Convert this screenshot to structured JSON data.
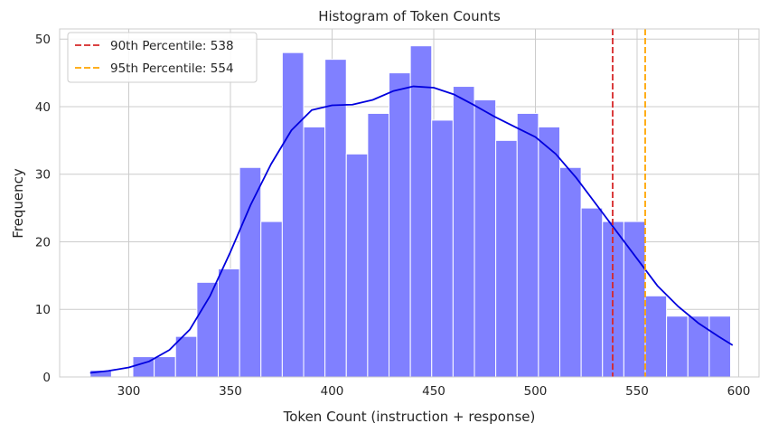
{
  "chart_data": {
    "type": "bar",
    "title": "Histogram of Token Counts",
    "xlabel": "Token Count (instruction + response)",
    "ylabel": "Frequency",
    "xlim": [
      266,
      610
    ],
    "ylim": [
      0,
      51.5
    ],
    "x_ticks": [
      300,
      350,
      400,
      450,
      500,
      550,
      600
    ],
    "y_ticks": [
      0,
      10,
      20,
      30,
      40,
      50
    ],
    "grid": true,
    "legend_position": "top-left",
    "bar_color": "#8080ff",
    "bin_start": 281,
    "bin_width": 10.5,
    "bin_counts": [
      1,
      0,
      3,
      3,
      6,
      14,
      16,
      31,
      23,
      48,
      37,
      47,
      33,
      39,
      45,
      49,
      38,
      43,
      41,
      35,
      39,
      37,
      31,
      25,
      23,
      23,
      12,
      9,
      9,
      9
    ],
    "kde": {
      "name": "KDE",
      "color": "#0000dd",
      "x": [
        281,
        290,
        300,
        310,
        320,
        330,
        340,
        350,
        360,
        370,
        380,
        390,
        400,
        410,
        420,
        430,
        440,
        450,
        460,
        470,
        480,
        490,
        500,
        510,
        520,
        530,
        540,
        550,
        560,
        570,
        580,
        590,
        597
      ],
      "y": [
        0.6,
        0.9,
        1.4,
        2.3,
        4.0,
        7.0,
        12.0,
        18.5,
        25.5,
        31.5,
        36.5,
        39.5,
        40.2,
        40.3,
        41.0,
        42.3,
        43.0,
        42.8,
        41.8,
        40.2,
        38.5,
        37.0,
        35.5,
        33.0,
        29.5,
        25.5,
        21.5,
        17.5,
        13.5,
        10.5,
        8.0,
        6.0,
        4.7
      ]
    },
    "reference_lines": [
      {
        "label": "90th Percentile: 538",
        "x": 538,
        "color": "#d62728"
      },
      {
        "label": "95th Percentile: 554",
        "x": 554,
        "color": "#ffa500"
      }
    ]
  }
}
